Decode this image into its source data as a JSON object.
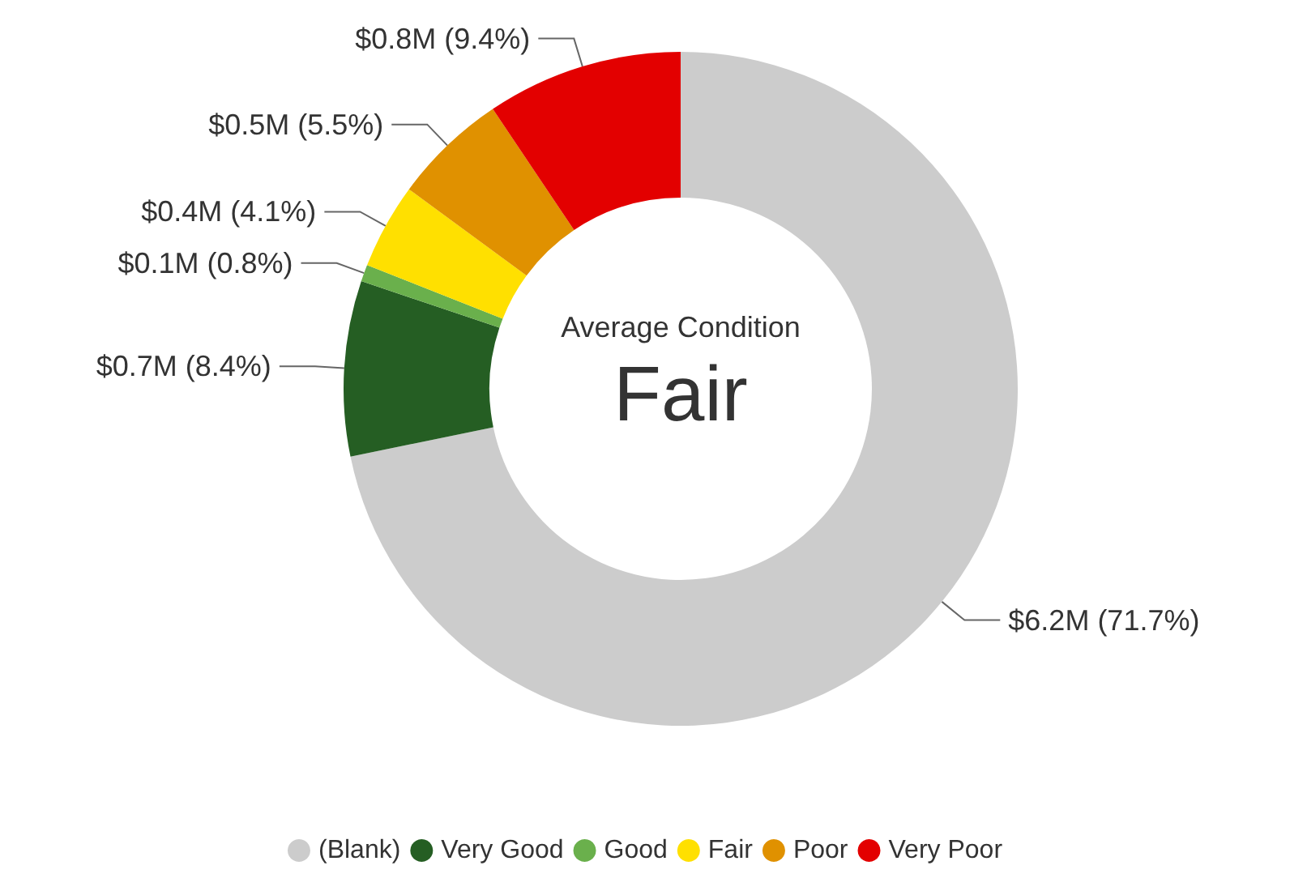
{
  "chart_data": {
    "type": "donut",
    "categories": [
      "(Blank)",
      "Very Good",
      "Good",
      "Fair",
      "Poor",
      "Very Poor"
    ],
    "values": [
      71.7,
      8.4,
      0.8,
      4.1,
      5.5,
      9.4
    ],
    "value_labels": [
      "$6.2M (71.7%)",
      "$0.7M (8.4%)",
      "$0.1M (0.8%)",
      "$0.4M (4.1%)",
      "$0.5M (5.5%)",
      "$0.8M (9.4%)"
    ],
    "colors": [
      "#cccccc",
      "#255e23",
      "#6ab04c",
      "#ffe000",
      "#e09100",
      "#e30000"
    ],
    "annotations": [
      "Average Condition",
      "Fair"
    ],
    "legend": "bottom"
  }
}
